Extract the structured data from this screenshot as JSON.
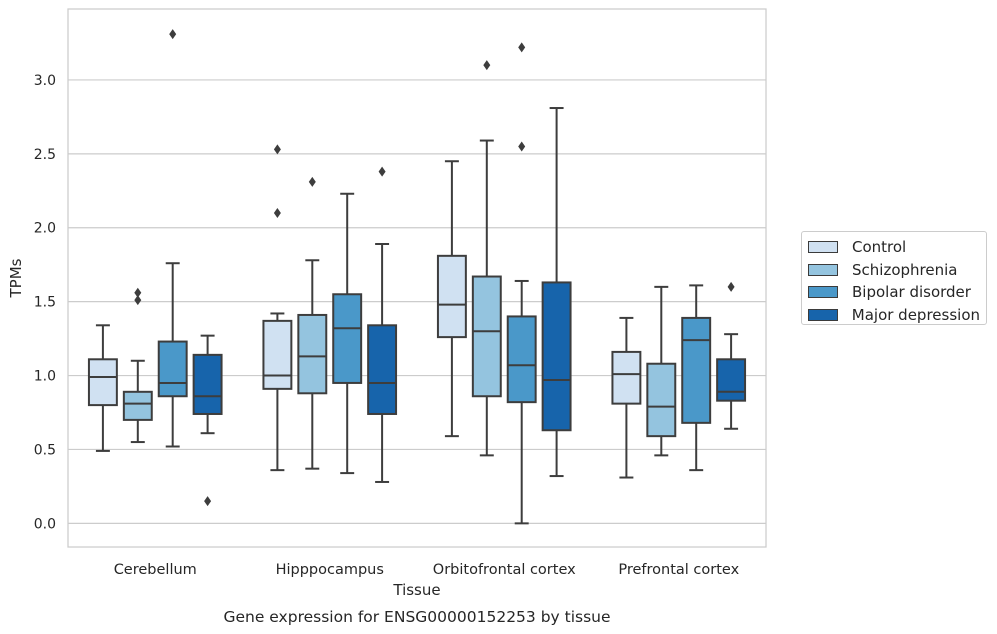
{
  "chart_data": {
    "type": "box",
    "title": "",
    "caption": "Gene expression for ENSG00000152253 by tissue",
    "xlabel": "Tissue",
    "ylabel": "TPMs",
    "ylim": [
      -0.16,
      3.48
    ],
    "yticks": [
      "0.0",
      "0.5",
      "1.0",
      "1.5",
      "2.0",
      "2.5",
      "3.0"
    ],
    "grid": true,
    "legend_position": "right",
    "categories": [
      "Cerebellum",
      "Hipppocampus",
      "Orbitofrontal cortex",
      "Prefrontal cortex"
    ],
    "series": [
      {
        "name": "Control",
        "color": "#d0e1f2",
        "boxes": [
          {
            "whisker_low": 0.49,
            "q1": 0.8,
            "median": 0.99,
            "q3": 1.11,
            "whisker_high": 1.34,
            "outliers": []
          },
          {
            "whisker_low": 0.36,
            "q1": 0.91,
            "median": 1.0,
            "q3": 1.37,
            "whisker_high": 1.42,
            "outliers": [
              2.1,
              2.53
            ]
          },
          {
            "whisker_low": 0.59,
            "q1": 1.26,
            "median": 1.48,
            "q3": 1.81,
            "whisker_high": 2.45,
            "outliers": []
          },
          {
            "whisker_low": 0.31,
            "q1": 0.81,
            "median": 1.01,
            "q3": 1.16,
            "whisker_high": 1.39,
            "outliers": []
          }
        ]
      },
      {
        "name": "Schizophrenia",
        "color": "#94c4df",
        "boxes": [
          {
            "whisker_low": 0.55,
            "q1": 0.7,
            "median": 0.81,
            "q3": 0.89,
            "whisker_high": 1.1,
            "outliers": [
              1.51,
              1.56
            ]
          },
          {
            "whisker_low": 0.37,
            "q1": 0.88,
            "median": 1.13,
            "q3": 1.41,
            "whisker_high": 1.78,
            "outliers": [
              2.31
            ]
          },
          {
            "whisker_low": 0.46,
            "q1": 0.86,
            "median": 1.3,
            "q3": 1.67,
            "whisker_high": 2.59,
            "outliers": [
              3.1
            ]
          },
          {
            "whisker_low": 0.46,
            "q1": 0.59,
            "median": 0.79,
            "q3": 1.08,
            "whisker_high": 1.6,
            "outliers": []
          }
        ]
      },
      {
        "name": "Bipolar disorder",
        "color": "#4a98c9",
        "boxes": [
          {
            "whisker_low": 0.52,
            "q1": 0.86,
            "median": 0.95,
            "q3": 1.23,
            "whisker_high": 1.76,
            "outliers": [
              3.31
            ]
          },
          {
            "whisker_low": 0.34,
            "q1": 0.95,
            "median": 1.32,
            "q3": 1.55,
            "whisker_high": 2.23,
            "outliers": []
          },
          {
            "whisker_low": 0.0,
            "q1": 0.82,
            "median": 1.07,
            "q3": 1.4,
            "whisker_high": 1.64,
            "outliers": [
              2.55,
              3.22
            ]
          },
          {
            "whisker_low": 0.36,
            "q1": 0.68,
            "median": 1.24,
            "q3": 1.39,
            "whisker_high": 1.61,
            "outliers": []
          }
        ]
      },
      {
        "name": "Major depression",
        "color": "#1764ab",
        "boxes": [
          {
            "whisker_low": 0.61,
            "q1": 0.74,
            "median": 0.86,
            "q3": 1.14,
            "whisker_high": 1.27,
            "outliers": [
              0.15
            ]
          },
          {
            "whisker_low": 0.28,
            "q1": 0.74,
            "median": 0.95,
            "q3": 1.34,
            "whisker_high": 1.89,
            "outliers": [
              2.38
            ]
          },
          {
            "whisker_low": 0.32,
            "q1": 0.63,
            "median": 0.97,
            "q3": 1.63,
            "whisker_high": 2.81,
            "outliers": []
          },
          {
            "whisker_low": 0.64,
            "q1": 0.83,
            "median": 0.89,
            "q3": 1.11,
            "whisker_high": 1.28,
            "outliers": [
              1.6
            ]
          }
        ]
      }
    ]
  }
}
